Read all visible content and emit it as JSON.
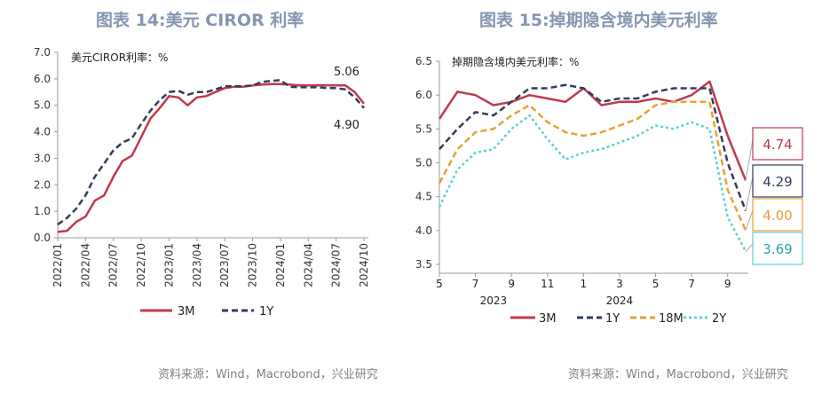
{
  "left": {
    "figure_title": "图表 14:美元 CIROR 利率",
    "source": "资料来源：Wind，Macrobond，兴业研究",
    "chart_data": {
      "type": "line",
      "title": "美元CIROR利率：%",
      "x": [
        "2022/01",
        "2022/02",
        "2022/03",
        "2022/04",
        "2022/05",
        "2022/06",
        "2022/07",
        "2022/08",
        "2022/09",
        "2022/10",
        "2022/11",
        "2022/12",
        "2023/01",
        "2023/02",
        "2023/03",
        "2023/04",
        "2023/05",
        "2023/06",
        "2023/07",
        "2023/08",
        "2023/09",
        "2023/10",
        "2023/11",
        "2023/12",
        "2024/01",
        "2024/02",
        "2024/03",
        "2024/04",
        "2024/05",
        "2024/06",
        "2024/07",
        "2024/08",
        "2024/09",
        "2024/10"
      ],
      "x_tick_labels": [
        "2022/01",
        "2022/04",
        "2022/07",
        "2022/10",
        "2023/01",
        "2023/04",
        "2023/07",
        "2023/10",
        "2024/01",
        "2024/04",
        "2024/07",
        "2024/10"
      ],
      "ylim": [
        0,
        7
      ],
      "y_ticks": [
        "0.0",
        "1.0",
        "2.0",
        "3.0",
        "4.0",
        "5.0",
        "6.0",
        "7.0"
      ],
      "series": [
        {
          "name": "3M",
          "color": "#c0394c",
          "dash": "solid",
          "values": [
            0.22,
            0.26,
            0.6,
            0.8,
            1.4,
            1.6,
            2.3,
            2.9,
            3.1,
            3.8,
            4.5,
            4.9,
            5.35,
            5.3,
            5.0,
            5.3,
            5.35,
            5.5,
            5.65,
            5.7,
            5.7,
            5.75,
            5.78,
            5.8,
            5.8,
            5.78,
            5.75,
            5.75,
            5.75,
            5.75,
            5.75,
            5.75,
            5.5,
            5.06
          ]
        },
        {
          "name": "1Y",
          "color": "#2f3d5c",
          "dash": "dashed",
          "values": [
            0.5,
            0.75,
            1.1,
            1.6,
            2.3,
            2.8,
            3.3,
            3.6,
            3.75,
            4.3,
            4.8,
            5.2,
            5.5,
            5.55,
            5.4,
            5.5,
            5.5,
            5.6,
            5.72,
            5.72,
            5.72,
            5.75,
            5.88,
            5.92,
            5.95,
            5.7,
            5.68,
            5.68,
            5.68,
            5.65,
            5.65,
            5.6,
            5.3,
            4.9
          ]
        }
      ],
      "annotations": [
        "5.06",
        "4.90"
      ]
    }
  },
  "right": {
    "figure_title": "图表 15:掉期隐含境内美元利率",
    "source": "资料来源：Wind，Macrobond，兴业研究",
    "chart_data": {
      "type": "line",
      "title": "掉期隐含境内美元利率：%",
      "x": [
        "2023/05",
        "2023/06",
        "2023/07",
        "2023/08",
        "2023/09",
        "2023/10",
        "2023/11",
        "2023/12",
        "2024/01",
        "2024/02",
        "2024/03",
        "2024/04",
        "2024/05",
        "2024/06",
        "2024/07",
        "2024/08",
        "2024/09",
        "2024/10"
      ],
      "x_tick_labels": [
        "5",
        "7",
        "9",
        "11",
        "1",
        "3",
        "5",
        "7",
        "9"
      ],
      "x_year_labels": [
        "2023",
        "2024"
      ],
      "ylim": [
        3.5,
        6.5
      ],
      "y_ticks": [
        "3.5",
        "4.0",
        "4.5",
        "5.0",
        "5.5",
        "6.0",
        "6.5"
      ],
      "series": [
        {
          "name": "3M",
          "color": "#c0394c",
          "dash": "solid",
          "values": [
            5.65,
            6.05,
            6.0,
            5.85,
            5.9,
            6.0,
            5.95,
            5.9,
            6.1,
            5.85,
            5.9,
            5.9,
            5.95,
            5.9,
            6.0,
            6.2,
            5.4,
            4.74
          ]
        },
        {
          "name": "1Y",
          "color": "#2f3d5c",
          "dash": "dashed",
          "values": [
            5.2,
            5.5,
            5.75,
            5.7,
            5.9,
            6.1,
            6.1,
            6.15,
            6.1,
            5.9,
            5.95,
            5.95,
            6.05,
            6.1,
            6.1,
            6.1,
            5.0,
            4.29
          ]
        },
        {
          "name": "18M",
          "color": "#e8a030",
          "dash": "dashed",
          "values": [
            4.7,
            5.2,
            5.45,
            5.5,
            5.7,
            5.85,
            5.6,
            5.45,
            5.4,
            5.45,
            5.55,
            5.65,
            5.85,
            5.9,
            5.9,
            5.9,
            4.6,
            4.0
          ]
        },
        {
          "name": "2Y",
          "color": "#5fd0d0",
          "dash": "dotted",
          "values": [
            4.35,
            4.9,
            5.15,
            5.2,
            5.5,
            5.7,
            5.35,
            5.05,
            5.15,
            5.2,
            5.3,
            5.4,
            5.55,
            5.5,
            5.6,
            5.5,
            4.2,
            3.69
          ]
        }
      ],
      "end_labels": [
        "4.74",
        "4.29",
        "4.00",
        "3.69"
      ]
    }
  }
}
